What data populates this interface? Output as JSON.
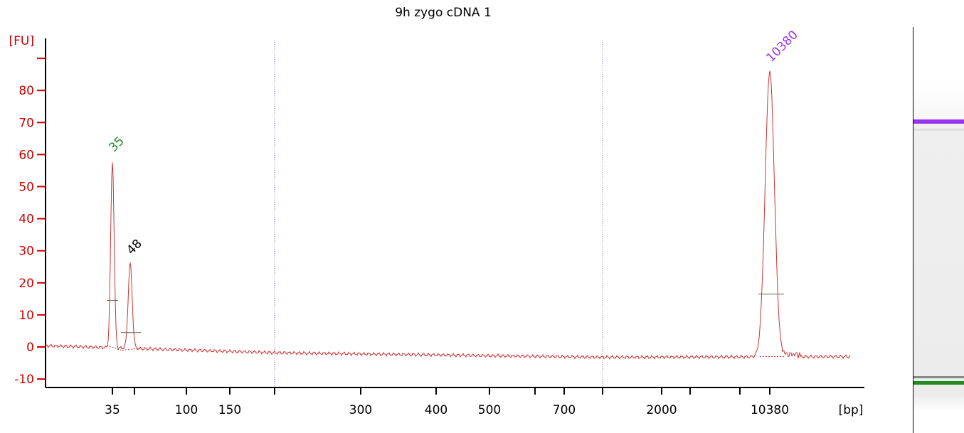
{
  "chart_data": {
    "type": "line",
    "title": "9h zygo cDNA 1",
    "ylabel": "[FU]",
    "xlabel": "[bp]",
    "ylim": [
      -12,
      97
    ],
    "yticks": [
      -10,
      0,
      10,
      20,
      30,
      40,
      50,
      60,
      70,
      80
    ],
    "xticks": [
      "35",
      "",
      "100",
      "150",
      "",
      "300",
      "400",
      "500",
      "",
      "700",
      "",
      "2000",
      "",
      "",
      "10380"
    ],
    "grid": false,
    "series": [
      {
        "x": [
          35,
          48,
          10380
        ],
        "y": [
          58,
          26,
          86
        ]
      }
    ],
    "peaks": [
      {
        "label": "35",
        "value": 58,
        "color": "#228b22"
      },
      {
        "label": "48",
        "value": 26,
        "color": "#000000"
      },
      {
        "label": "10380",
        "value": 86,
        "color": "#9933ee"
      }
    ],
    "colors": {
      "axis": "#cc0000",
      "trace": "#cc3333",
      "upper_marker": "#9933ee",
      "lower_marker": "#228b22"
    }
  }
}
